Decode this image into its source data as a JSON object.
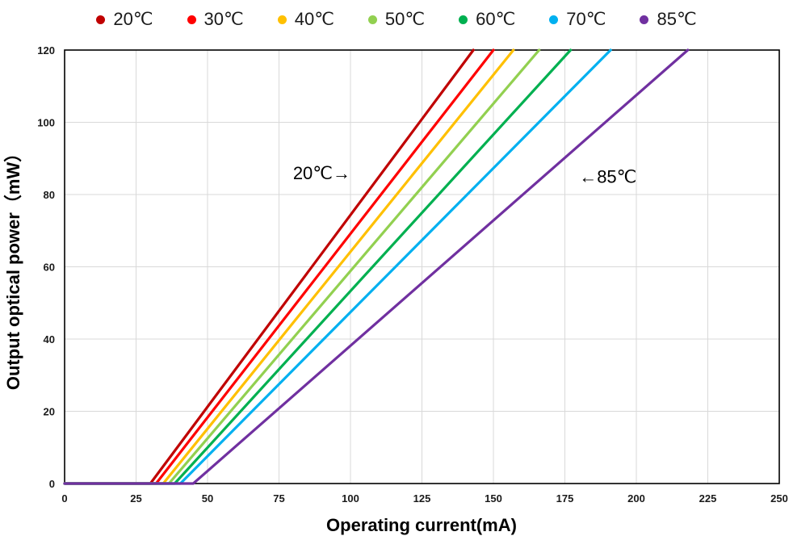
{
  "chart_data": {
    "type": "line",
    "title": "",
    "xlabel": "Operating current(mA)",
    "ylabel": "Output optical power（mW）",
    "xlim": [
      0,
      250
    ],
    "ylim": [
      0,
      120
    ],
    "xticks": [
      0,
      25,
      50,
      75,
      100,
      125,
      150,
      175,
      200,
      225,
      250
    ],
    "yticks": [
      0,
      20,
      40,
      60,
      80,
      100,
      120
    ],
    "grid": true,
    "grid_color": "#d9d9d9",
    "frame_color": "#000000",
    "legend_position": "top",
    "series": [
      {
        "name": "20℃",
        "color": "#C00000",
        "points": [
          [
            0,
            0
          ],
          [
            30,
            0
          ],
          [
            143,
            120
          ]
        ]
      },
      {
        "name": "30℃",
        "color": "#FF0000",
        "points": [
          [
            0,
            0
          ],
          [
            32,
            0
          ],
          [
            150,
            120
          ]
        ]
      },
      {
        "name": "40℃",
        "color": "#FFC000",
        "points": [
          [
            0,
            0
          ],
          [
            34.5,
            0
          ],
          [
            157,
            120
          ]
        ]
      },
      {
        "name": "50℃",
        "color": "#92D050",
        "points": [
          [
            0,
            0
          ],
          [
            36.5,
            0
          ],
          [
            166,
            120
          ]
        ]
      },
      {
        "name": "60℃",
        "color": "#00B050",
        "points": [
          [
            0,
            0
          ],
          [
            38.5,
            0
          ],
          [
            177,
            120
          ]
        ]
      },
      {
        "name": "70℃",
        "color": "#00B0F0",
        "points": [
          [
            0,
            0
          ],
          [
            40.5,
            0
          ],
          [
            191,
            120
          ]
        ]
      },
      {
        "name": "85℃",
        "color": "#7030A0",
        "points": [
          [
            0,
            0
          ],
          [
            45,
            0
          ],
          [
            218,
            120
          ]
        ]
      }
    ],
    "annotations": [
      {
        "text": "20℃→",
        "x": 100,
        "y": 86,
        "anchor": "end"
      },
      {
        "text": "←85℃",
        "x": 180,
        "y": 85,
        "anchor": "start"
      }
    ]
  }
}
